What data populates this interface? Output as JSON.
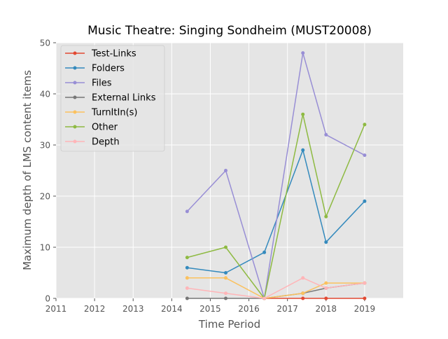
{
  "chart_data": {
    "type": "line",
    "title": "Music Theatre: Singing Sondheim (MUST20008)",
    "xlabel": "Time Period",
    "ylabel": "Maximum depth of LMS content items",
    "xlim": [
      2011,
      2020
    ],
    "ylim": [
      0,
      50
    ],
    "xticks": [
      2011,
      2012,
      2013,
      2014,
      2015,
      2016,
      2017,
      2018,
      2019
    ],
    "yticks": [
      0,
      10,
      20,
      30,
      40,
      50
    ],
    "grid": true,
    "legend_position": "top-left",
    "x": [
      2014.4,
      2015.4,
      2016.4,
      2017.4,
      2018.0,
      2019.0
    ],
    "series": [
      {
        "name": "Test-Links",
        "color": "#e24a33",
        "values": [
          null,
          null,
          0,
          0,
          0,
          0
        ]
      },
      {
        "name": "Folders",
        "color": "#348abd",
        "values": [
          6,
          5,
          9,
          29,
          11,
          19
        ]
      },
      {
        "name": "Files",
        "color": "#988ed5",
        "values": [
          17,
          25,
          0,
          48,
          32,
          28
        ]
      },
      {
        "name": "External Links",
        "color": "#777777",
        "values": [
          0,
          0,
          0,
          1,
          2,
          3
        ]
      },
      {
        "name": "TurnItIn(s)",
        "color": "#fbc15e",
        "values": [
          4,
          4,
          0,
          1,
          3,
          3
        ]
      },
      {
        "name": "Other",
        "color": "#8eba42",
        "values": [
          8,
          10,
          0,
          36,
          16,
          34
        ]
      },
      {
        "name": "Depth",
        "color": "#ffb5b8",
        "values": [
          2,
          1,
          0,
          4,
          2,
          3
        ]
      }
    ]
  }
}
